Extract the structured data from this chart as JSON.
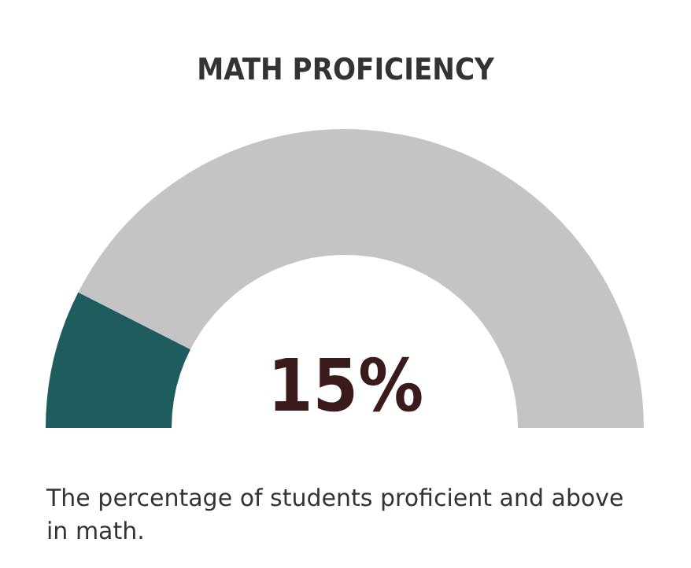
{
  "chart_data": {
    "type": "donut",
    "title": "MATH PROFICIENCY",
    "categories": [
      null,
      null
    ],
    "values": [
      15,
      85
    ],
    "colors": [
      "#1f5c5e",
      "#c4c4c4"
    ],
    "annotations": [
      "15%",
      "The percentage of students proficient and above in math."
    ]
  }
}
